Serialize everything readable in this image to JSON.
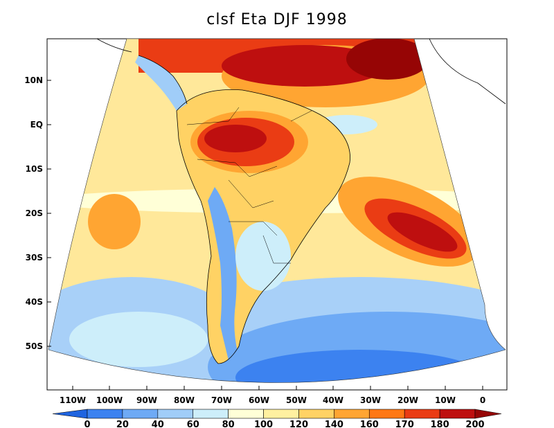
{
  "title": "clsf Eta DJF 1998",
  "lat_ticks": [
    "10N",
    "EQ",
    "10S",
    "20S",
    "30S",
    "40S",
    "50S"
  ],
  "lon_ticks": [
    "110W",
    "100W",
    "90W",
    "80W",
    "70W",
    "60W",
    "50W",
    "40W",
    "30W",
    "20W",
    "10W",
    "0"
  ],
  "colorbar": {
    "levels": [
      "0",
      "20",
      "40",
      "60",
      "80",
      "100",
      "120",
      "140",
      "160",
      "170",
      "180",
      "200"
    ],
    "colors": [
      "#1f64e0",
      "#3c82f0",
      "#6eaaf5",
      "#a0cdf8",
      "#cdeefa",
      "#ffffd7",
      "#fff0a0",
      "#ffd264",
      "#ffa532",
      "#ff7814",
      "#ea3c14",
      "#be0f0f",
      "#960505"
    ]
  }
}
